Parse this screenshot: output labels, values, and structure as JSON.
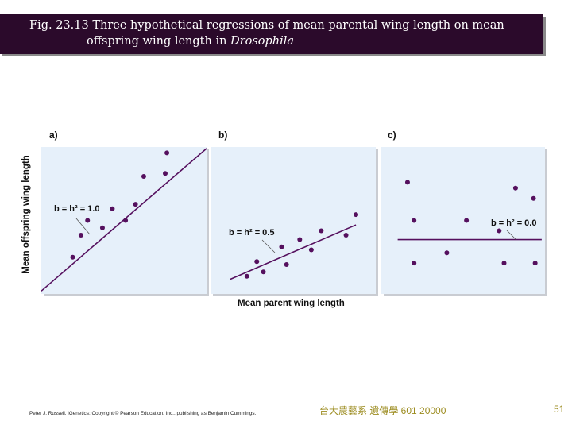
{
  "title": {
    "line1": "Fig. 23.13  Three hypothetical regressions of mean parental wing length on mean",
    "line2_prefix": "offspring wing length in ",
    "line2_italic": "Drosophila"
  },
  "axis": {
    "ylabel": "Mean offspring wing length",
    "xlabel": "Mean parent wing length"
  },
  "colors": {
    "title_bg": "#2b0a2b",
    "panel_bg": "#e6f0fa",
    "point": "#55105e",
    "line": "#55105e"
  },
  "chart_data": [
    {
      "type": "scatter",
      "panel_label": "a)",
      "annotation": "b = h² = 1.0",
      "xlim": [
        0,
        10
      ],
      "ylim": [
        0,
        10
      ],
      "points": [
        {
          "x": 1.9,
          "y": 2.5
        },
        {
          "x": 2.4,
          "y": 4.0
        },
        {
          "x": 2.8,
          "y": 5.0
        },
        {
          "x": 3.7,
          "y": 4.5
        },
        {
          "x": 4.3,
          "y": 5.8
        },
        {
          "x": 5.1,
          "y": 5.0
        },
        {
          "x": 5.7,
          "y": 6.1
        },
        {
          "x": 6.2,
          "y": 8.0
        },
        {
          "x": 7.5,
          "y": 8.2
        },
        {
          "x": 7.6,
          "y": 9.6
        }
      ],
      "regression": {
        "x": [
          0,
          10
        ],
        "y": [
          0.2,
          9.9
        ]
      }
    },
    {
      "type": "scatter",
      "panel_label": "b)",
      "annotation": "b = h² = 0.5",
      "xlim": [
        0,
        10
      ],
      "ylim": [
        0,
        10
      ],
      "points": [
        {
          "x": 2.2,
          "y": 1.2
        },
        {
          "x": 2.8,
          "y": 2.2
        },
        {
          "x": 3.2,
          "y": 1.5
        },
        {
          "x": 4.3,
          "y": 3.2
        },
        {
          "x": 4.6,
          "y": 2.0
        },
        {
          "x": 5.4,
          "y": 3.7
        },
        {
          "x": 6.1,
          "y": 3.0
        },
        {
          "x": 6.7,
          "y": 4.3
        },
        {
          "x": 8.2,
          "y": 4.0
        },
        {
          "x": 8.8,
          "y": 5.4
        }
      ],
      "regression": {
        "x": [
          1.2,
          8.8
        ],
        "y": [
          1.0,
          4.7
        ]
      }
    },
    {
      "type": "scatter",
      "panel_label": "c)",
      "annotation": "b = h² = 0.0",
      "xlim": [
        0,
        10
      ],
      "ylim": [
        0,
        10
      ],
      "points": [
        {
          "x": 1.6,
          "y": 7.6
        },
        {
          "x": 2.0,
          "y": 5.0
        },
        {
          "x": 2.0,
          "y": 2.1
        },
        {
          "x": 4.0,
          "y": 2.8
        },
        {
          "x": 5.2,
          "y": 5.0
        },
        {
          "x": 7.2,
          "y": 4.3
        },
        {
          "x": 7.5,
          "y": 2.1
        },
        {
          "x": 8.2,
          "y": 7.2
        },
        {
          "x": 9.3,
          "y": 6.5
        },
        {
          "x": 9.4,
          "y": 2.1
        }
      ],
      "regression": {
        "x": [
          1.0,
          9.8
        ],
        "y": [
          3.7,
          3.7
        ]
      }
    }
  ],
  "footer": {
    "credit": "Peter J. Russell, iGenetics: Copyright © Pearson Education, Inc., publishing as Benjamin Cummings.",
    "course": "台大農藝系 遺傳學 601 20000",
    "page_number": "51"
  }
}
